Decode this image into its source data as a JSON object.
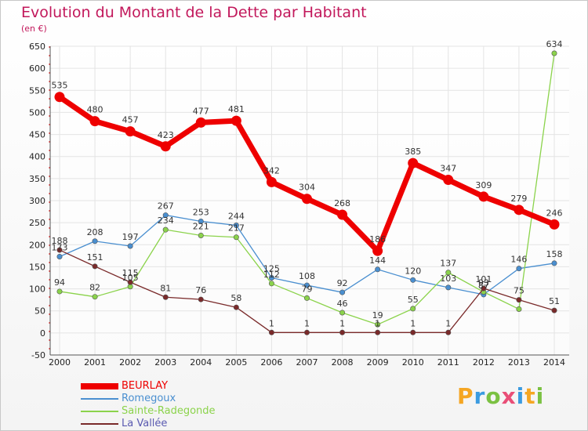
{
  "title": "Evolution du Montant de la Dette par Habitant",
  "unit_label": "(en €)",
  "logo": {
    "letters": [
      "P",
      "r",
      "o",
      "x",
      "i",
      "t",
      "i"
    ],
    "colors": [
      "#f5a623",
      "#3b9be0",
      "#7bc142",
      "#e94e77",
      "#3b9be0",
      "#f5a623",
      "#7bc142"
    ]
  },
  "chart_data": {
    "type": "line",
    "title": "Evolution du Montant de la Dette par Habitant",
    "ylabel": "(en €)",
    "xlabel": "",
    "categories": [
      "2000",
      "2001",
      "2002",
      "2003",
      "2004",
      "2005",
      "2006",
      "2007",
      "2008",
      "2009",
      "2010",
      "2011",
      "2012",
      "2013",
      "2014"
    ],
    "ylim": [
      -50,
      650
    ],
    "yticks": [
      -50,
      0,
      50,
      100,
      150,
      200,
      250,
      300,
      350,
      400,
      450,
      500,
      550,
      600,
      650
    ],
    "ytick_labels": [
      "-50",
      "0",
      "50",
      "100",
      "150",
      "200",
      "250",
      "300",
      "350",
      "400",
      "450",
      "500",
      "550",
      "600",
      "650"
    ],
    "grid": true,
    "legend_position": "bottom-left",
    "series": [
      {
        "name": "BEURLAY",
        "color": "#ee0000",
        "emphasis": true,
        "values": [
          535,
          480,
          457,
          423,
          477,
          481,
          342,
          304,
          268,
          186,
          385,
          347,
          309,
          279,
          246
        ],
        "labels": [
          "535",
          "480",
          "457",
          "423",
          "477",
          "481",
          "342",
          "304",
          "268",
          "186",
          "385",
          "347",
          "309",
          "279",
          "246"
        ]
      },
      {
        "name": "Romegoux",
        "color": "#4a8fd0",
        "values": [
          173,
          208,
          197,
          267,
          253,
          244,
          125,
          108,
          92,
          144,
          120,
          103,
          87,
          146,
          158
        ],
        "labels": [
          "173",
          "208",
          "197",
          "267",
          "253",
          "244",
          "125",
          "108",
          "92",
          "144",
          "120",
          "103",
          "87",
          "146",
          "158"
        ]
      },
      {
        "name": "Sainte-Radegonde",
        "color": "#8bd34b",
        "values": [
          94,
          82,
          105,
          234,
          221,
          217,
          112,
          79,
          46,
          19,
          55,
          137,
          93,
          54,
          634
        ],
        "labels": [
          "94",
          "82",
          "105",
          "234",
          "221",
          "217",
          "112",
          "79",
          "46",
          "19",
          "55",
          "137",
          "93",
          "",
          "634"
        ]
      },
      {
        "name": "La Vallée",
        "color": "#7a2a2a",
        "values": [
          188,
          151,
          115,
          81,
          76,
          58,
          1,
          1,
          1,
          1,
          1,
          1,
          101,
          75,
          51
        ],
        "labels": [
          "188",
          "151",
          "115",
          "81",
          "76",
          "58",
          "1",
          "1",
          "1",
          "1",
          "1",
          "1",
          "101",
          "75",
          "51"
        ]
      }
    ]
  }
}
